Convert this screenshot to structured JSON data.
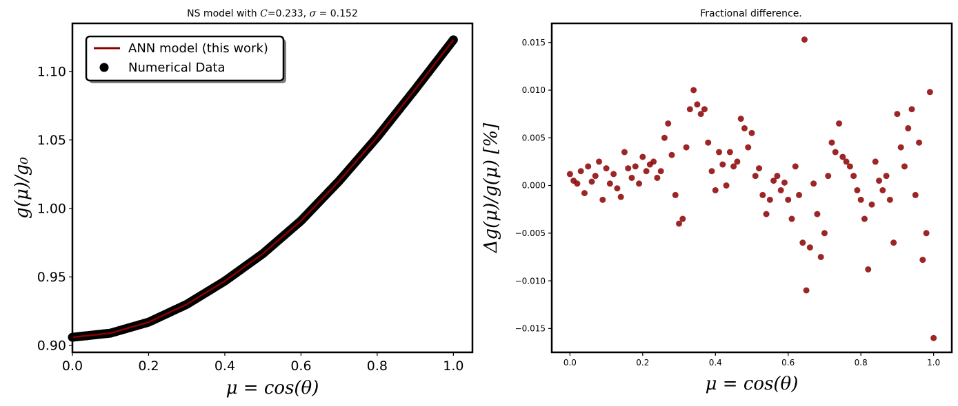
{
  "chart_data": [
    {
      "type": "line+scatter",
      "title": "NS model with C=0.233, σ = 0.152",
      "title_parts": {
        "prefix": "NS model with ",
        "c_symbol": "C",
        "c_value": "=0.233, ",
        "sigma_symbol": "σ",
        "sigma_value": " = 0.152"
      },
      "xlabel": "μ = cos(θ)",
      "ylabel": "g(μ)/g₀",
      "xlim": [
        0.0,
        1.05
      ],
      "ylim": [
        0.895,
        1.135
      ],
      "xticks": [
        0.0,
        0.2,
        0.4,
        0.6,
        0.8,
        1.0
      ],
      "xtick_labels": [
        "0.0",
        "0.2",
        "0.4",
        "0.6",
        "0.8",
        "1.0"
      ],
      "yticks": [
        0.9,
        0.95,
        1.0,
        1.05,
        1.1
      ],
      "ytick_labels": [
        "0.90",
        "0.95",
        "1.00",
        "1.05",
        "1.10"
      ],
      "legend_position": "top-left",
      "legend": [
        {
          "label": "ANN model (this work)",
          "kind": "line",
          "color": "#8b0000"
        },
        {
          "label": "Numerical Data",
          "kind": "marker",
          "color": "#000000"
        }
      ],
      "series": [
        {
          "name": "ANN model (this work)",
          "kind": "line",
          "color": "#8b0000",
          "x": [
            0.0,
            0.1,
            0.2,
            0.3,
            0.4,
            0.5,
            0.6,
            0.7,
            0.8,
            0.9,
            1.0
          ],
          "y": [
            0.906,
            0.909,
            0.917,
            0.93,
            0.947,
            0.967,
            0.991,
            1.02,
            1.052,
            1.087,
            1.123
          ]
        },
        {
          "name": "Numerical Data",
          "kind": "scatter",
          "color": "#000000",
          "x": [
            0.0,
            0.1,
            0.2,
            0.3,
            0.4,
            0.5,
            0.6,
            0.7,
            0.8,
            0.9,
            1.0
          ],
          "y": [
            0.906,
            0.909,
            0.917,
            0.93,
            0.947,
            0.967,
            0.991,
            1.02,
            1.052,
            1.087,
            1.123
          ]
        }
      ]
    },
    {
      "type": "scatter",
      "title": "Fractional difference.",
      "xlabel": "μ = cos(θ)",
      "ylabel": "Δg(μ)/g(μ) [%]",
      "xlim": [
        -0.05,
        1.05
      ],
      "ylim": [
        -0.0175,
        0.017
      ],
      "xticks": [
        0.0,
        0.2,
        0.4,
        0.6,
        0.8,
        1.0
      ],
      "xtick_labels": [
        "0.0",
        "0.2",
        "0.4",
        "0.6",
        "0.8",
        "1.0"
      ],
      "yticks": [
        -0.015,
        -0.01,
        -0.005,
        0.0,
        0.005,
        0.01,
        0.015
      ],
      "ytick_labels": [
        "−0.015",
        "−0.010",
        "−0.005",
        "0.000",
        "0.005",
        "0.010",
        "0.015"
      ],
      "series": [
        {
          "color": "#8b0000",
          "x": [
            0.0,
            0.01,
            0.02,
            0.03,
            0.04,
            0.05,
            0.06,
            0.07,
            0.08,
            0.09,
            0.1,
            0.11,
            0.12,
            0.13,
            0.14,
            0.15,
            0.16,
            0.17,
            0.18,
            0.19,
            0.2,
            0.21,
            0.22,
            0.23,
            0.24,
            0.25,
            0.26,
            0.27,
            0.28,
            0.29,
            0.3,
            0.31,
            0.32,
            0.33,
            0.34,
            0.35,
            0.36,
            0.37,
            0.38,
            0.39,
            0.4,
            0.41,
            0.42,
            0.43,
            0.44,
            0.45,
            0.46,
            0.47,
            0.48,
            0.49,
            0.5,
            0.51,
            0.52,
            0.53,
            0.54,
            0.55,
            0.56,
            0.57,
            0.58,
            0.59,
            0.6,
            0.61,
            0.62,
            0.63,
            0.64,
            0.645,
            0.65,
            0.66,
            0.67,
            0.68,
            0.69,
            0.7,
            0.71,
            0.72,
            0.73,
            0.74,
            0.75,
            0.76,
            0.77,
            0.78,
            0.79,
            0.8,
            0.81,
            0.82,
            0.83,
            0.84,
            0.85,
            0.86,
            0.87,
            0.88,
            0.89,
            0.9,
            0.91,
            0.92,
            0.93,
            0.94,
            0.95,
            0.96,
            0.97,
            0.98,
            0.99,
            1.0
          ],
          "y": [
            0.0012,
            0.0005,
            0.0002,
            0.0015,
            -0.0008,
            0.002,
            0.0004,
            0.001,
            0.0025,
            -0.0015,
            0.0018,
            0.0002,
            0.0012,
            -0.0003,
            -0.0012,
            0.0035,
            0.0018,
            0.0008,
            0.002,
            0.0002,
            0.003,
            0.0015,
            0.0022,
            0.0025,
            0.0008,
            0.0015,
            0.005,
            0.0065,
            0.0032,
            -0.001,
            -0.004,
            -0.0035,
            0.004,
            0.008,
            0.01,
            0.0085,
            0.0075,
            0.008,
            0.0045,
            0.0015,
            -0.0005,
            0.0035,
            0.0022,
            0.0,
            0.0035,
            0.002,
            0.0025,
            0.007,
            0.006,
            0.004,
            0.0055,
            0.001,
            0.0018,
            -0.001,
            -0.003,
            -0.0015,
            0.0005,
            0.001,
            -0.0005,
            0.0003,
            -0.0015,
            -0.0035,
            0.002,
            -0.001,
            -0.006,
            0.0153,
            -0.011,
            -0.0065,
            0.0002,
            -0.003,
            -0.0075,
            -0.005,
            0.001,
            0.0045,
            0.0035,
            0.0065,
            0.003,
            0.0025,
            0.002,
            0.001,
            -0.0005,
            -0.0015,
            -0.0035,
            -0.0088,
            -0.002,
            0.0025,
            0.0005,
            -0.0005,
            0.001,
            -0.0015,
            -0.006,
            0.0075,
            0.004,
            0.002,
            0.006,
            0.008,
            -0.001,
            0.0045,
            -0.0078,
            -0.005,
            0.0098,
            -0.016
          ]
        }
      ]
    }
  ]
}
